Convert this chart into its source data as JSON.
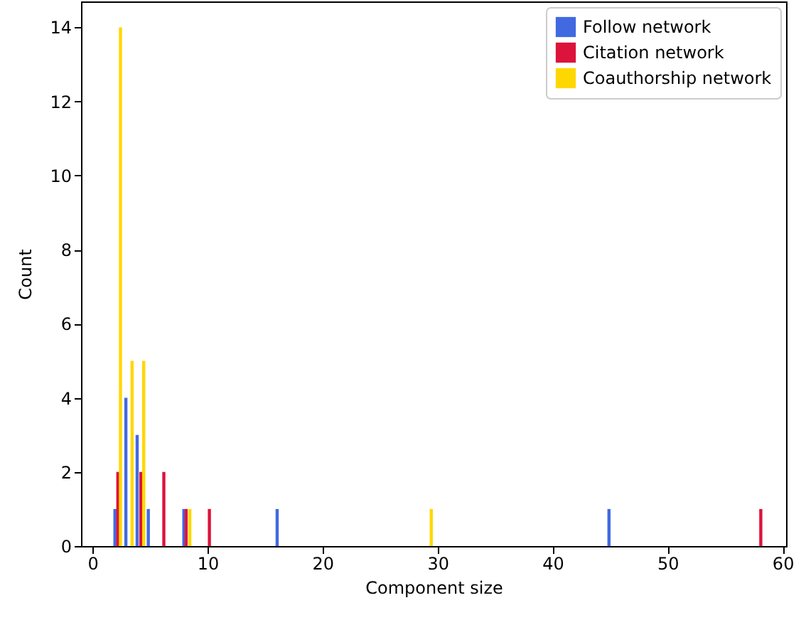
{
  "chart_data": {
    "type": "bar",
    "xlabel": "Component size",
    "ylabel": "Count",
    "xlim": [
      -1,
      60.3
    ],
    "xticks": [
      0,
      10,
      20,
      30,
      40,
      50,
      60
    ],
    "ylim": [
      0,
      14.7
    ],
    "yticks": [
      0,
      2,
      4,
      6,
      8,
      10,
      12,
      14
    ],
    "grid": false,
    "legend": "top right",
    "series": [
      {
        "name": "Follow network",
        "color": "#4169e1",
        "x": [
          1.95,
          2.9,
          3.88,
          4.85,
          7.94,
          16.05,
          44.9
        ],
        "values": [
          1,
          4,
          3,
          1,
          1,
          1,
          1
        ]
      },
      {
        "name": "Citation network",
        "color": "#dc143c",
        "x": [
          2.2,
          4.2,
          6.2,
          8.14,
          10.16,
          58.1
        ],
        "values": [
          2,
          2,
          2,
          1,
          1,
          1
        ]
      },
      {
        "name": "Coauthorship network",
        "color": "#ffd700",
        "x": [
          2.43,
          3.44,
          4.45,
          8.46,
          29.45
        ],
        "values": [
          14,
          5,
          5,
          1,
          1
        ]
      }
    ]
  }
}
